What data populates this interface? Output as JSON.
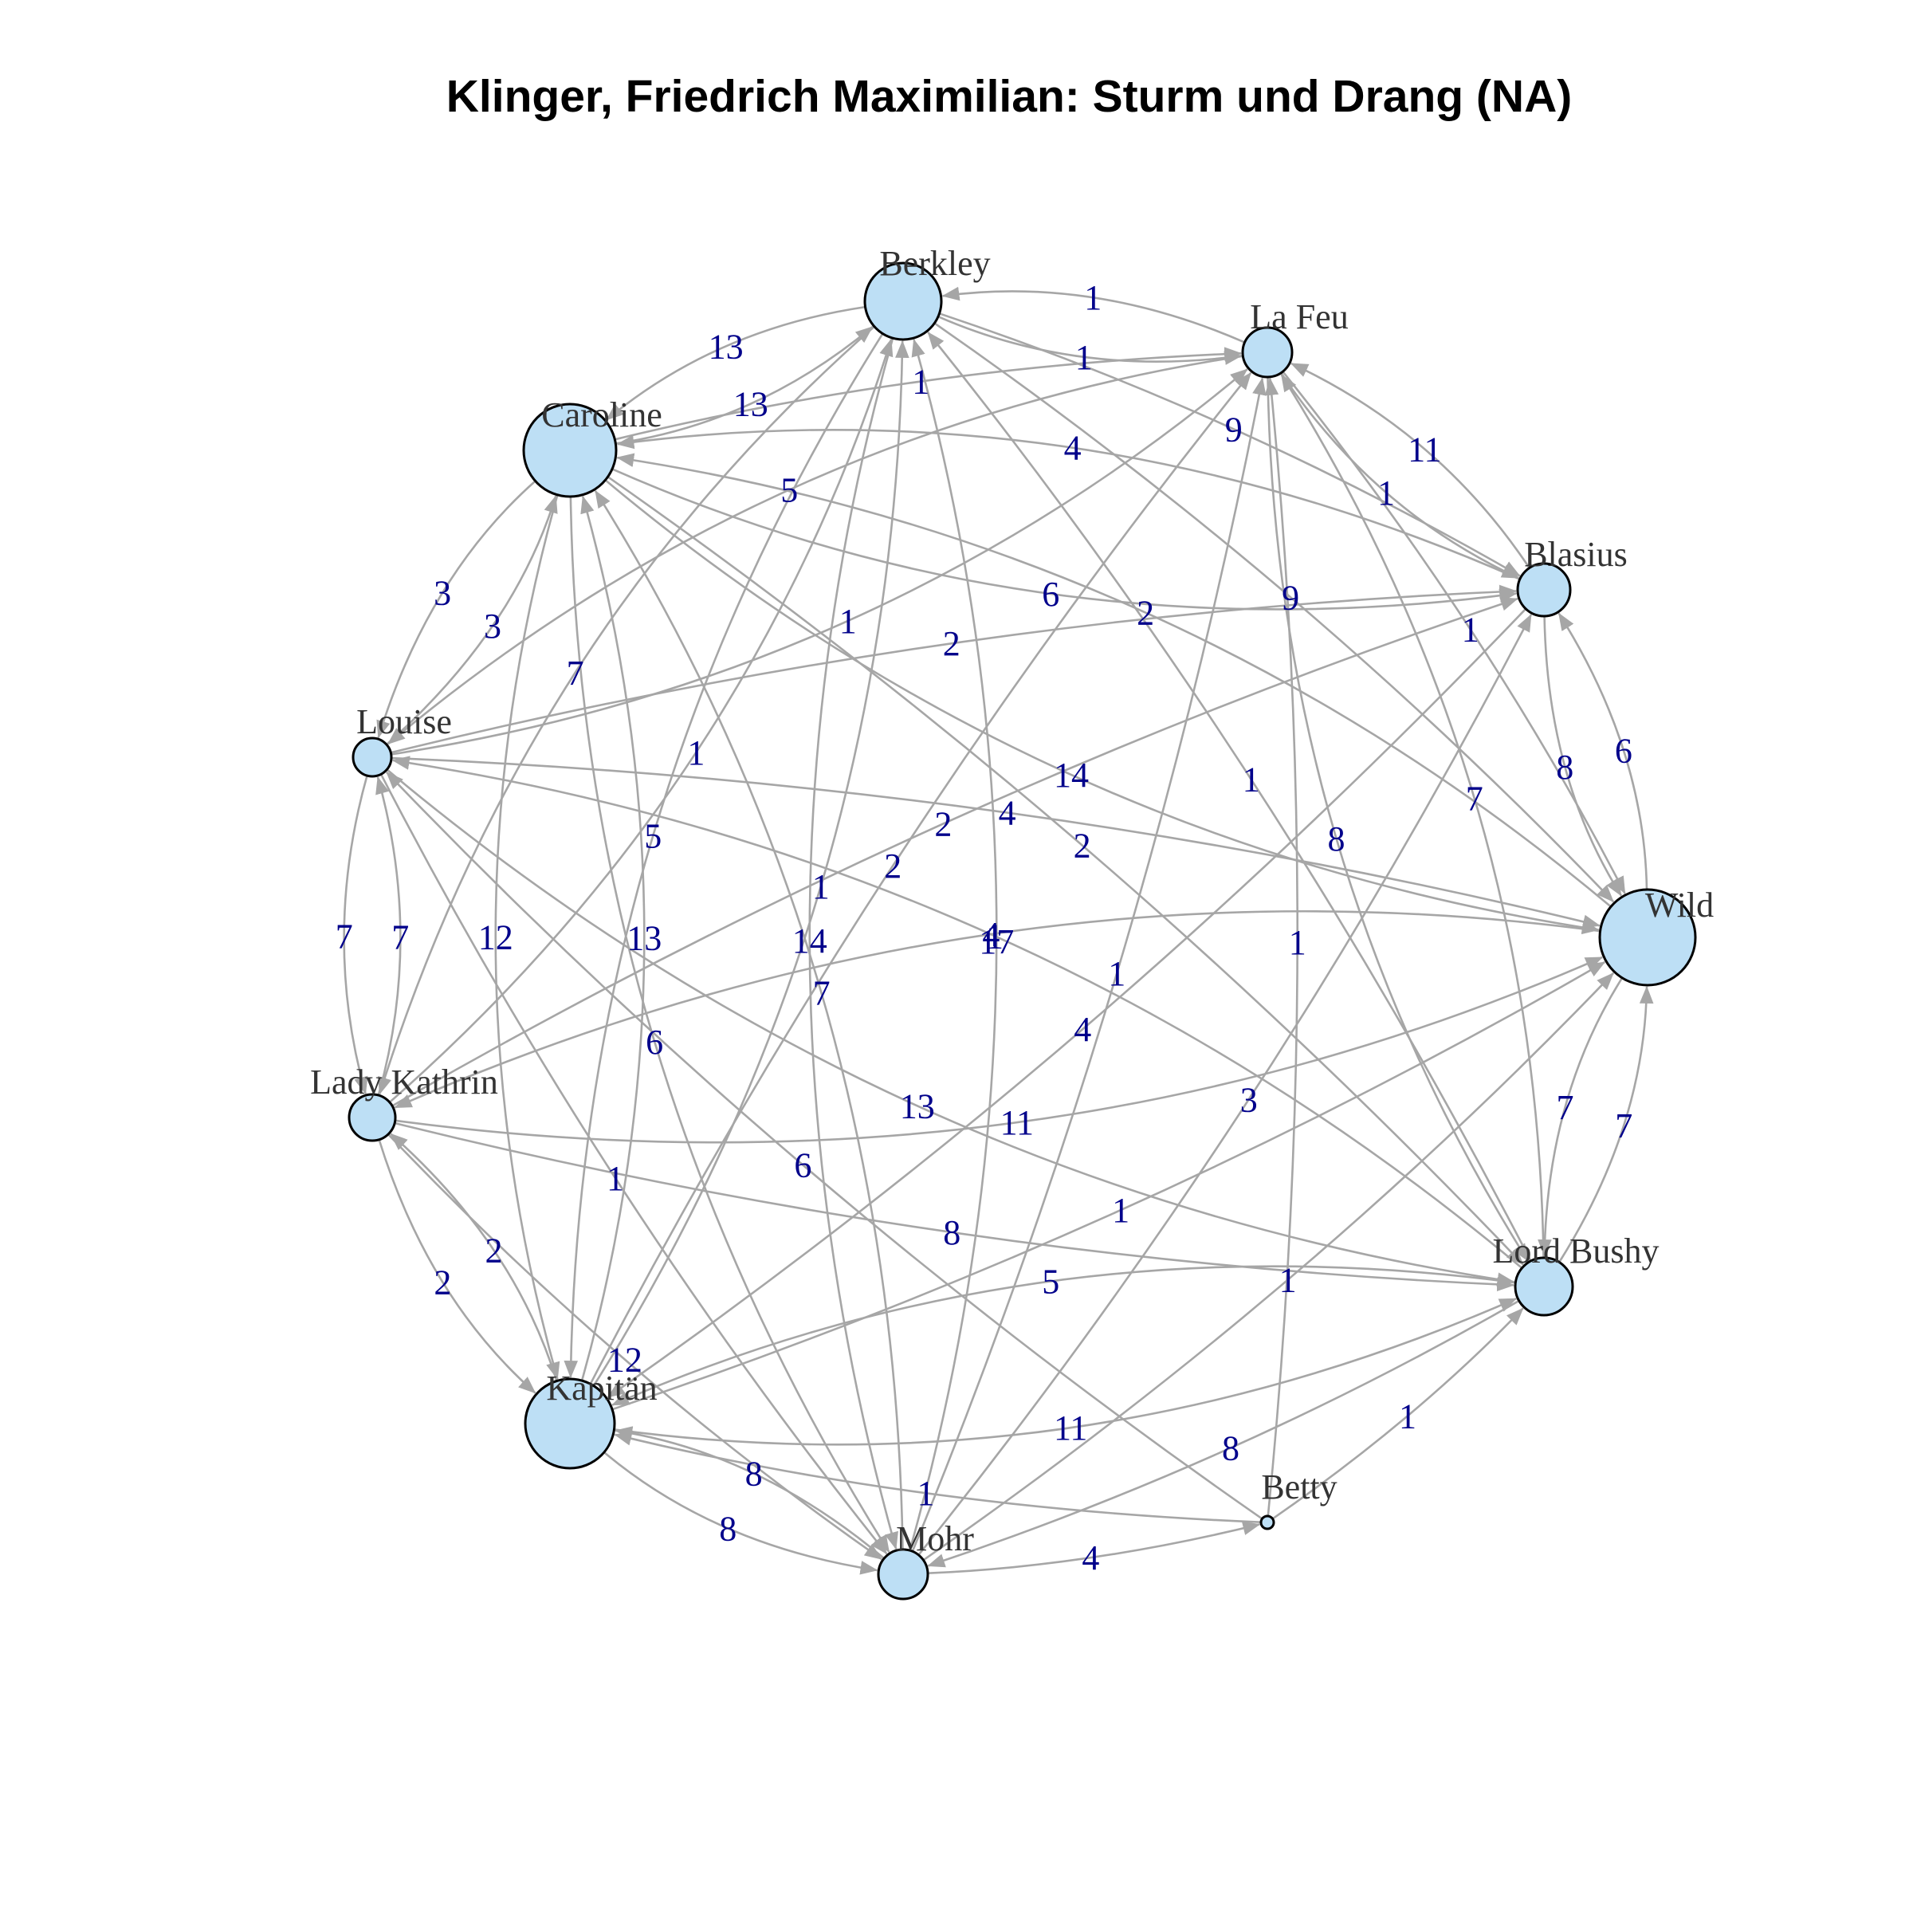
{
  "title": "Klinger, Friedrich Maximilian: Sturm und Drang (NA)",
  "colors": {
    "node_fill": "#bddff5",
    "node_stroke": "#000000",
    "edge": "#a6a6a6",
    "edge_label": "#00008b",
    "node_label": "#333333"
  },
  "nodes": [
    {
      "id": "berkley",
      "label": "Berkley"
    },
    {
      "id": "lafeu",
      "label": "La Feu"
    },
    {
      "id": "blasius",
      "label": "Blasius"
    },
    {
      "id": "wild",
      "label": "Wild"
    },
    {
      "id": "lordbushy",
      "label": "Lord Bushy"
    },
    {
      "id": "betty",
      "label": "Betty"
    },
    {
      "id": "mohr",
      "label": "Mohr"
    },
    {
      "id": "kapitan",
      "label": "Kapitän"
    },
    {
      "id": "ladykathrin",
      "label": "Lady Kathrin"
    },
    {
      "id": "louise",
      "label": "Louise"
    },
    {
      "id": "caroline",
      "label": "Caroline"
    }
  ],
  "edges": [
    {
      "source": "berkley",
      "target": "lafeu",
      "weight": "1"
    },
    {
      "source": "lafeu",
      "target": "berkley",
      "weight": "1"
    },
    {
      "source": "caroline",
      "target": "berkley",
      "weight": "13"
    },
    {
      "source": "berkley",
      "target": "caroline",
      "weight": "13"
    },
    {
      "source": "caroline",
      "target": "lafeu",
      "weight": "1"
    },
    {
      "source": "lafeu",
      "target": "blasius",
      "weight": "1"
    },
    {
      "source": "blasius",
      "target": "lafeu",
      "weight": "11"
    },
    {
      "source": "caroline",
      "target": "blasius",
      "weight": "6"
    },
    {
      "source": "blasius",
      "target": "caroline",
      "weight": "4"
    },
    {
      "source": "blasius",
      "target": "wild",
      "weight": "8"
    },
    {
      "source": "wild",
      "target": "blasius",
      "weight": "6"
    },
    {
      "source": "lordbushy",
      "target": "wild",
      "weight": "7"
    },
    {
      "source": "wild",
      "target": "lordbushy",
      "weight": "7"
    },
    {
      "source": "kapitan",
      "target": "mohr",
      "weight": "8"
    },
    {
      "source": "mohr",
      "target": "kapitan",
      "weight": "8"
    },
    {
      "source": "mohr",
      "target": "betty",
      "weight": "4"
    },
    {
      "source": "betty",
      "target": "lordbushy",
      "weight": "1"
    },
    {
      "source": "louise",
      "target": "ladykathrin",
      "weight": "7"
    },
    {
      "source": "ladykathrin",
      "target": "louise",
      "weight": "7"
    },
    {
      "source": "ladykathrin",
      "target": "kapitan",
      "weight": "2"
    },
    {
      "source": "kapitan",
      "target": "ladykathrin",
      "weight": "2"
    },
    {
      "source": "louise",
      "target": "caroline",
      "weight": "3"
    },
    {
      "source": "caroline",
      "target": "louise",
      "weight": "3"
    },
    {
      "source": "berkley",
      "target": "mohr",
      "weight": "14"
    },
    {
      "source": "caroline",
      "target": "wild",
      "weight": "14"
    },
    {
      "source": "louise",
      "target": "wild",
      "weight": "4"
    },
    {
      "source": "ladykathrin",
      "target": "wild",
      "weight": "11"
    },
    {
      "source": "kapitan",
      "target": "lafeu",
      "weight": "2"
    },
    {
      "source": "mohr",
      "target": "berkley",
      "weight": "17"
    },
    {
      "source": "betty",
      "target": "lafeu",
      "weight": "1"
    },
    {
      "source": "mohr",
      "target": "blasius",
      "weight": "3"
    },
    {
      "source": "kapitan",
      "target": "lordbushy",
      "weight": "11"
    },
    {
      "source": "ladykathrin",
      "target": "lordbushy",
      "weight": "8"
    },
    {
      "source": "louise",
      "target": "lordbushy",
      "weight": "13"
    },
    {
      "source": "caroline",
      "target": "kapitan",
      "weight": "12"
    },
    {
      "source": "kapitan",
      "target": "caroline",
      "weight": "13"
    },
    {
      "source": "louise",
      "target": "mohr",
      "weight": "1"
    },
    {
      "source": "berkley",
      "target": "kapitan",
      "weight": "5"
    },
    {
      "source": "kapitan",
      "target": "berkley",
      "weight": "1"
    },
    {
      "source": "berkley",
      "target": "blasius",
      "weight": "9"
    },
    {
      "source": "lafeu",
      "target": "lordbushy",
      "weight": "8"
    },
    {
      "source": "lordbushy",
      "target": "lafeu",
      "weight": "7"
    },
    {
      "source": "caroline",
      "target": "mohr",
      "weight": "6"
    },
    {
      "source": "ladykathrin",
      "target": "blasius",
      "weight": "2"
    },
    {
      "source": "wild",
      "target": "ladykathrin",
      "weight": "4"
    },
    {
      "source": "mohr",
      "target": "wild",
      "weight": "1"
    },
    {
      "source": "kapitan",
      "target": "wild",
      "weight": "1"
    },
    {
      "source": "betty",
      "target": "kapitan",
      "weight": "1"
    },
    {
      "source": "lordbushy",
      "target": "kapitan",
      "weight": "5"
    },
    {
      "source": "lafeu",
      "target": "wild",
      "weight": "1"
    },
    {
      "source": "louise",
      "target": "lafeu",
      "weight": "1"
    },
    {
      "source": "lafeu",
      "target": "louise",
      "weight": "5"
    },
    {
      "source": "ladykathrin",
      "target": "berkley",
      "weight": "1"
    },
    {
      "source": "berkley",
      "target": "ladykathrin",
      "weight": "7"
    },
    {
      "source": "berkley",
      "target": "wild",
      "weight": "9"
    },
    {
      "source": "wild",
      "target": "caroline",
      "weight": "2"
    },
    {
      "source": "louise",
      "target": "blasius",
      "weight": "2"
    },
    {
      "source": "lordbushy",
      "target": "louise",
      "weight": "1"
    },
    {
      "source": "mohr",
      "target": "lafeu",
      "weight": "1"
    },
    {
      "source": "betty",
      "target": "louise",
      "weight": "6"
    },
    {
      "source": "blasius",
      "target": "kapitan",
      "weight": "4"
    },
    {
      "source": "lordbushy",
      "target": "berkley",
      "weight": "1"
    },
    {
      "source": "caroline",
      "target": "lordbushy",
      "weight": "2"
    },
    {
      "source": "mohr",
      "target": "caroline",
      "weight": "7"
    },
    {
      "source": "lordbushy",
      "target": "mohr",
      "weight": "8"
    },
    {
      "source": "ladykathrin",
      "target": "mohr",
      "weight": "12"
    }
  ]
}
